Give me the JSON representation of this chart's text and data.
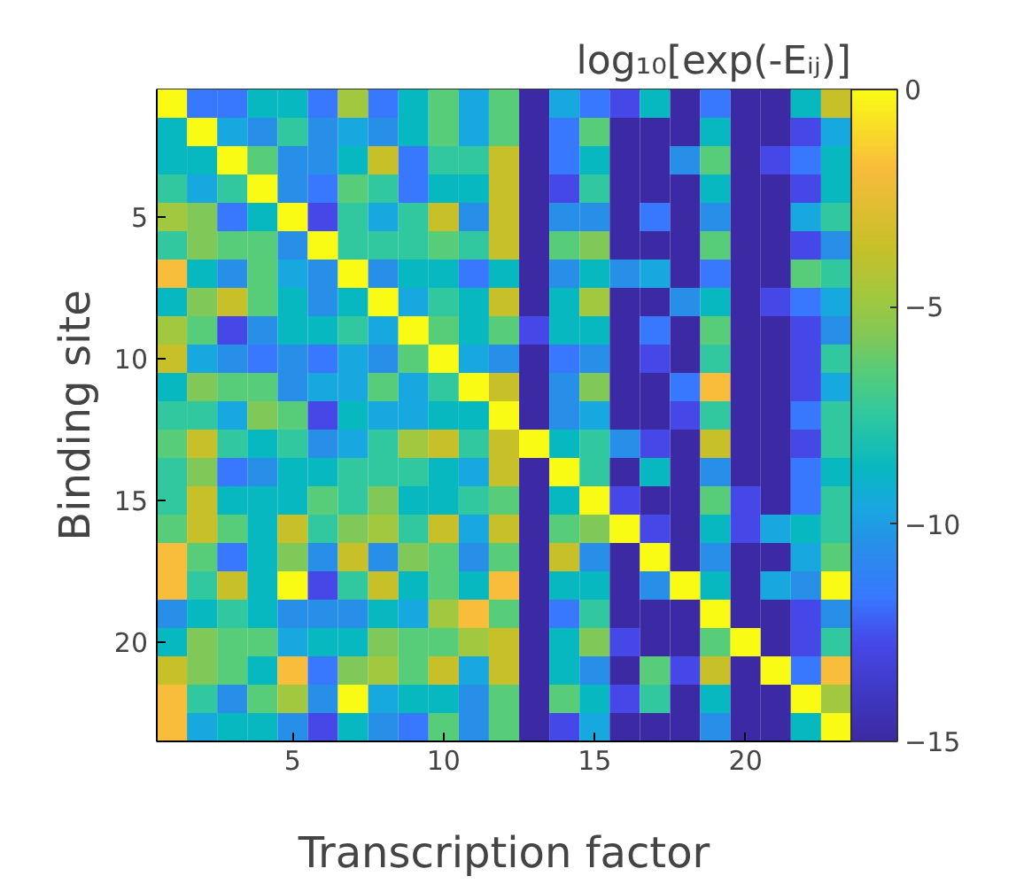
{
  "chart_data": {
    "type": "heatmap",
    "xlabel": "Transcription factor",
    "ylabel": "Binding site",
    "clabel": "log₁₀[exp(-Eᵢⱼ)]",
    "categories": [
      null,
      null,
      null,
      null,
      "5",
      null,
      null,
      null,
      null,
      "10",
      null,
      null,
      null,
      null,
      "15",
      null,
      null,
      null,
      null,
      "20",
      null,
      null,
      null
    ],
    "y_categories": [
      null,
      null,
      null,
      null,
      "5",
      null,
      null,
      null,
      null,
      "10",
      null,
      null,
      null,
      null,
      "15",
      null,
      null,
      null,
      null,
      "20",
      null,
      null,
      null
    ],
    "clim": [
      -15,
      0
    ],
    "cticks": [
      0,
      -5,
      -10,
      -15
    ],
    "cells": [
      [
        0,
        -11.7,
        -11.7,
        -8.7,
        -8.7,
        -11.7,
        -4.8,
        -11.7,
        -8.7,
        -6.5,
        -9.6,
        -6.5,
        -15,
        -9.6,
        -11.7,
        -12.8,
        -8.7,
        -15,
        -11.7,
        -15,
        -15,
        -8.7,
        -3.6
      ],
      [
        -8.7,
        0,
        -9.6,
        -10.5,
        -7.5,
        -10.5,
        -9.6,
        -10.5,
        -8.7,
        -6.5,
        -9.6,
        -6.5,
        -15,
        -11.7,
        -6.5,
        -15,
        -15,
        -15,
        -8.7,
        -15,
        -15,
        -12.8,
        -9.6
      ],
      [
        -8.7,
        -8.7,
        0,
        -6.5,
        -10.5,
        -10.5,
        -8.7,
        -3.6,
        -11.7,
        -7.5,
        -7.5,
        -3.6,
        -15,
        -11.7,
        -8.7,
        -15,
        -15,
        -10.5,
        -6.5,
        -15,
        -12.8,
        -11.7,
        -8.7
      ],
      [
        -7.5,
        -9.6,
        -7.5,
        0,
        -10.5,
        -11.7,
        -6.5,
        -7.5,
        -11.7,
        -8.7,
        -8.7,
        -3.6,
        -15,
        -12.8,
        -7.5,
        -15,
        -15,
        -15,
        -8.7,
        -15,
        -15,
        -12.8,
        -8.7
      ],
      [
        -4.8,
        -5.7,
        -11.7,
        -8.7,
        0,
        -12.8,
        -7.5,
        -9.6,
        -7.5,
        -3.6,
        -10.5,
        -3.6,
        -15,
        -10.5,
        -10.5,
        -15,
        -11.7,
        -15,
        -10.5,
        -15,
        -15,
        -9.6,
        -7.5
      ],
      [
        -7.5,
        -5.7,
        -6.5,
        -6.5,
        -10.5,
        0,
        -7.5,
        -7.5,
        -7.5,
        -6.5,
        -7.5,
        -3.6,
        -15,
        -6.5,
        -5.7,
        -15,
        -15,
        -15,
        -6.5,
        -15,
        -15,
        -12.8,
        -10.5
      ],
      [
        -1.8,
        -8.7,
        -10.5,
        -6.5,
        -9.6,
        -10.5,
        0,
        -10.5,
        -8.7,
        -8.7,
        -11.7,
        -8.7,
        -15,
        -10.5,
        -8.7,
        -10.5,
        -9.6,
        -15,
        -11.7,
        -15,
        -15,
        -6.5,
        -7.5
      ],
      [
        -8.7,
        -5.7,
        -3.6,
        -6.5,
        -8.7,
        -10.5,
        -8.7,
        0,
        -9.6,
        -7.5,
        -8.7,
        -3.6,
        -15,
        -8.7,
        -4.8,
        -15,
        -15,
        -10.5,
        -8.7,
        -15,
        -12.8,
        -11.7,
        -9.6
      ],
      [
        -4.8,
        -6.5,
        -12.8,
        -10.5,
        -8.7,
        -8.7,
        -7.5,
        -9.6,
        0,
        -6.5,
        -8.7,
        -6.5,
        -12.8,
        -8.7,
        -8.7,
        -15,
        -11.7,
        -15,
        -6.5,
        -15,
        -15,
        -12.8,
        -10.5
      ],
      [
        -3.6,
        -9.6,
        -10.5,
        -11.7,
        -10.5,
        -11.7,
        -9.6,
        -10.5,
        -6.5,
        0,
        -9.6,
        -10.5,
        -15,
        -11.7,
        -10.5,
        -15,
        -12.8,
        -15,
        -7.5,
        -15,
        -15,
        -12.8,
        -7.5
      ],
      [
        -8.7,
        -5.7,
        -6.5,
        -6.5,
        -10.5,
        -9.6,
        -9.6,
        -6.5,
        -9.6,
        -7.5,
        0,
        -3.6,
        -15,
        -10.5,
        -5.7,
        -15,
        -15,
        -11.7,
        -1.8,
        -15,
        -15,
        -12.8,
        -9.6
      ],
      [
        -7.5,
        -7.5,
        -9.6,
        -5.7,
        -6.5,
        -12.8,
        -8.7,
        -9.6,
        -9.6,
        -8.7,
        -8.7,
        0,
        -15,
        -10.5,
        -9.6,
        -15,
        -15,
        -12.8,
        -7.5,
        -15,
        -15,
        -11.7,
        -7.5
      ],
      [
        -6.5,
        -3.6,
        -7.5,
        -8.7,
        -7.5,
        -10.5,
        -9.6,
        -7.5,
        -4.8,
        -3.6,
        -7.5,
        -3.6,
        0,
        -8.7,
        -7.5,
        -10.5,
        -12.8,
        -15,
        -3.6,
        -15,
        -15,
        -12.8,
        -7.5
      ],
      [
        -7.5,
        -5.7,
        -11.7,
        -10.5,
        -8.7,
        -8.7,
        -7.5,
        -7.5,
        -7.5,
        -8.7,
        -9.6,
        -3.6,
        -15,
        0,
        -7.5,
        -15,
        -8.7,
        -15,
        -10.5,
        -15,
        -15,
        -11.7,
        -8.7
      ],
      [
        -7.5,
        -3.6,
        -8.7,
        -8.7,
        -8.7,
        -6.5,
        -7.5,
        -5.7,
        -8.7,
        -8.7,
        -7.5,
        -6.5,
        -15,
        -8.7,
        0,
        -12.8,
        -15,
        -15,
        -6.5,
        -12.8,
        -15,
        -11.7,
        -7.5
      ],
      [
        -6.5,
        -3.6,
        -6.5,
        -8.7,
        -3.6,
        -7.5,
        -5.7,
        -4.8,
        -7.5,
        -3.6,
        -9.6,
        -3.6,
        -15,
        -6.5,
        -5.7,
        0,
        -12.8,
        -15,
        -8.7,
        -12.8,
        -9.6,
        -8.7,
        -7.5
      ],
      [
        -1.8,
        -6.5,
        -11.7,
        -8.7,
        -5.7,
        -10.5,
        -3.6,
        -10.5,
        -5.7,
        -6.5,
        -10.5,
        -6.5,
        -15,
        -3.6,
        -10.5,
        -15,
        0,
        -15,
        -10.5,
        -15,
        -15,
        -9.6,
        -6.5
      ],
      [
        -1.8,
        -7.5,
        -3.6,
        -8.7,
        0,
        -12.8,
        -7.5,
        -3.6,
        -8.7,
        -6.5,
        -8.7,
        -1.8,
        -15,
        -8.7,
        -8.7,
        -15,
        -10.5,
        0,
        -8.7,
        -15,
        -9.6,
        -10.5,
        0
      ],
      [
        -10.5,
        -8.7,
        -7.5,
        -8.7,
        -10.5,
        -10.5,
        -10.5,
        -8.7,
        -9.6,
        -4.8,
        -1.8,
        -6.5,
        -15,
        -11.7,
        -7.5,
        -15,
        -15,
        -15,
        0,
        -15,
        -15,
        -12.8,
        -10.5
      ],
      [
        -8.7,
        -5.7,
        -6.5,
        -6.5,
        -9.6,
        -8.7,
        -8.7,
        -5.7,
        -6.5,
        -6.5,
        -4.8,
        -3.6,
        -15,
        -8.7,
        -5.7,
        -12.8,
        -15,
        -15,
        -6.5,
        0,
        -15,
        -12.8,
        -7.5
      ],
      [
        -3.6,
        -5.7,
        -6.5,
        -8.7,
        -1.8,
        -11.7,
        -5.7,
        -4.8,
        -6.5,
        -3.6,
        -9.6,
        -3.6,
        -15,
        -8.7,
        -10.5,
        -15,
        -6.5,
        -12.8,
        -3.6,
        -15,
        0,
        -11.7,
        -1.8
      ],
      [
        -1.8,
        -7.5,
        -10.5,
        -6.5,
        -4.8,
        -10.5,
        0,
        -9.6,
        -8.7,
        -8.7,
        -10.5,
        -6.5,
        -15,
        -6.5,
        -8.7,
        -12.8,
        -7.5,
        -15,
        -8.7,
        -15,
        -15,
        0,
        -4.8
      ],
      [
        -1.8,
        -9.6,
        -8.7,
        -8.7,
        -10.5,
        -12.8,
        -8.7,
        -10.5,
        -11.7,
        -6.5,
        -10.5,
        -6.5,
        -15,
        -12.8,
        -9.6,
        -15,
        -15,
        -15,
        -10.5,
        -15,
        -15,
        -8.7,
        0
      ]
    ]
  }
}
